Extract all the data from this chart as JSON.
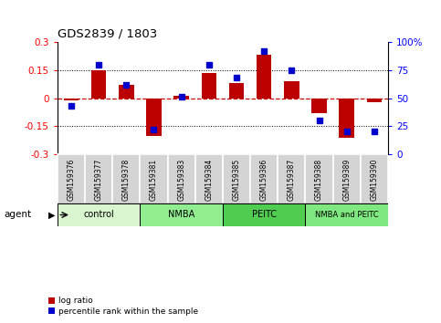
{
  "title": "GDS2839 / 1803",
  "samples": [
    "GSM159376",
    "GSM159377",
    "GSM159378",
    "GSM159381",
    "GSM159383",
    "GSM159384",
    "GSM159385",
    "GSM159386",
    "GSM159387",
    "GSM159388",
    "GSM159389",
    "GSM159390"
  ],
  "log_ratio": [
    -0.01,
    0.15,
    0.07,
    -0.2,
    0.01,
    0.135,
    0.08,
    0.23,
    0.09,
    -0.08,
    -0.21,
    -0.02
  ],
  "percentile_rank": [
    43,
    80,
    62,
    22,
    51,
    80,
    68,
    92,
    75,
    30,
    20,
    20
  ],
  "groups": [
    {
      "label": "control",
      "start": 0,
      "end": 3,
      "color": "#d8f5d0"
    },
    {
      "label": "NMBA",
      "start": 3,
      "end": 6,
      "color": "#90ee90"
    },
    {
      "label": "PEITC",
      "start": 6,
      "end": 9,
      "color": "#50cd50"
    },
    {
      "label": "NMBA and PEITC",
      "start": 9,
      "end": 12,
      "color": "#80e880"
    }
  ],
  "ylim": [
    -0.3,
    0.3
  ],
  "yticks_left": [
    -0.3,
    -0.15,
    0,
    0.15,
    0.3
  ],
  "ytick_labels_left": [
    "-0.3",
    "-0.15",
    "0",
    "0.15",
    "0.3"
  ],
  "ytick_labels_right": [
    "0",
    "25",
    "50",
    "75",
    "100%"
  ],
  "bar_color": "#bb0000",
  "dot_color": "#0000cc",
  "zero_line_color": "#cc0000",
  "background_color": "#ffffff",
  "plot_bg_color": "#ffffff",
  "agent_label": "agent"
}
